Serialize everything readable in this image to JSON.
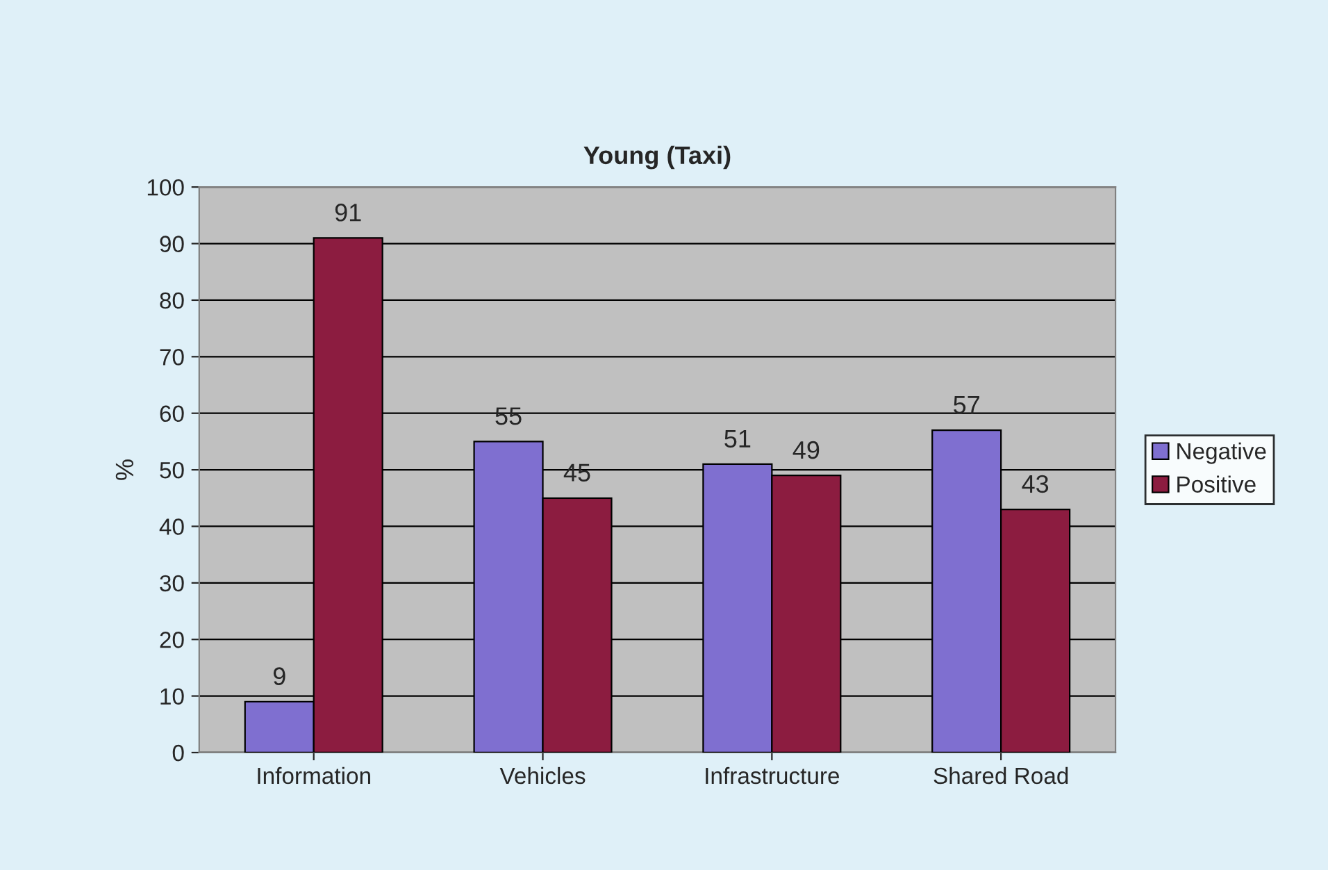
{
  "chart_data": {
    "type": "bar",
    "title": "Young (Taxi)",
    "ylabel": "%",
    "categories": [
      "Information",
      "Vehicles",
      "Infrastructure",
      "Shared Road"
    ],
    "series": [
      {
        "name": "Negative",
        "color": "#7f6fd0",
        "values": [
          9,
          55,
          51,
          57
        ]
      },
      {
        "name": "Positive",
        "color": "#8c1c40",
        "values": [
          91,
          45,
          49,
          43
        ]
      }
    ],
    "ylim": [
      0,
      100
    ],
    "yticks": [
      0,
      10,
      20,
      30,
      40,
      50,
      60,
      70,
      80,
      90,
      100
    ],
    "grid": "y",
    "legend": "right",
    "data_labels": true
  }
}
